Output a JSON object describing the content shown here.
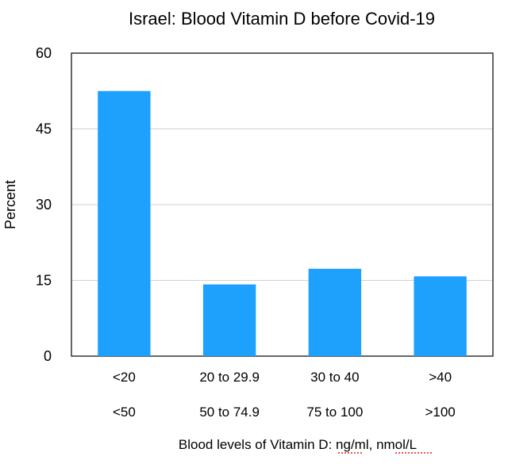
{
  "chart_data": {
    "type": "bar",
    "title": "Israel: Blood Vitamin D before Covid-19",
    "ylabel": "Percent",
    "xlabel_parts": [
      "Blood levels of Vitamin D: ",
      "ng/ml",
      ", ",
      "nmol/L"
    ],
    "categories": [
      "<20",
      "20 to 29.9",
      "30 to 40",
      ">40"
    ],
    "categories_nmol": [
      "<50",
      "50 to 74.9",
      "75 to 100",
      ">100"
    ],
    "values": [
      52.5,
      14.2,
      17.3,
      15.8
    ],
    "ylim": [
      0,
      60
    ],
    "yticks": [
      0,
      15,
      30,
      45,
      60
    ],
    "grid": true,
    "bar_color": "#1ea0fd",
    "grid_color": "#d0d0d0",
    "spellcheck_color": "#e02020"
  }
}
